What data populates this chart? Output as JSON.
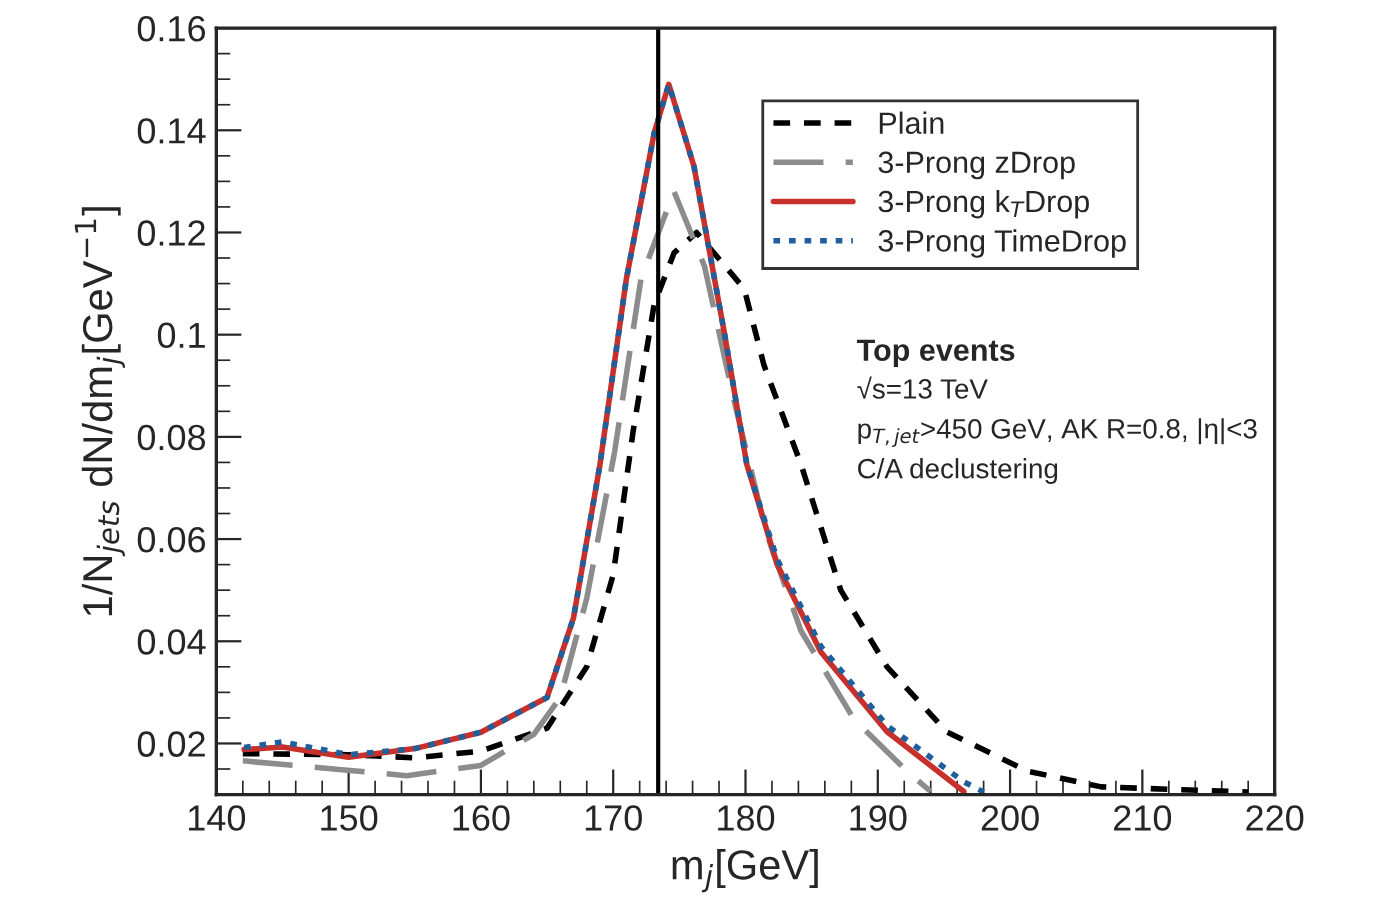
{
  "chart_data": {
    "type": "line",
    "xlabel": "m$_{j}$[GeV]",
    "ylabel": "1/N$_{jets}$ dN/dm$_{j}$[GeV$^{−1}$]",
    "xlim": [
      140,
      220
    ],
    "xticks": [
      140,
      150,
      160,
      170,
      180,
      190,
      200,
      210,
      220
    ],
    "ylim": [
      0.01,
      0.16
    ],
    "yticks": [
      0.02,
      0.04,
      0.06,
      0.08,
      0.1,
      0.12,
      0.14,
      0.16
    ],
    "grid": false,
    "legend": "top right",
    "marker": "none",
    "ref_lines": [
      {
        "axis": "x",
        "value": 173.4,
        "label": null,
        "color": "#000000",
        "line_style": "solid"
      }
    ],
    "annotations": [
      "Top events",
      "√s=13 TeV",
      "p$_{T,jet}$>450 GeV, AK R=0.8, |η|<3",
      "C/A declustering"
    ],
    "series": [
      {
        "name": "Plain",
        "color": "#000000",
        "line_style": "dashed",
        "x": [
          142,
          150,
          155,
          160,
          165,
          168,
          170,
          171.5,
          173.1,
          174.6,
          176.3,
          179.9,
          181.4,
          184.2,
          187.2,
          190.7,
          195.2,
          201.3,
          206.9,
          218
        ],
        "values": [
          0.018,
          0.0178,
          0.0172,
          0.0185,
          0.023,
          0.035,
          0.053,
          0.081,
          0.106,
          0.116,
          0.12,
          0.109,
          0.094,
          0.0746,
          0.05,
          0.035,
          0.0223,
          0.0146,
          0.0115,
          0.0105
        ]
      },
      {
        "name": "3-Prong zDrop",
        "color": "#8c8c8c",
        "line_style": "longdash",
        "x": [
          142,
          150.1,
          154.4,
          160,
          164,
          166,
          168,
          170.1,
          172.1,
          174.6,
          176.9,
          179.1,
          181.6,
          184.2,
          188.2,
          192.2,
          194
        ],
        "values": [
          0.0166,
          0.0147,
          0.0137,
          0.0157,
          0.0218,
          0.029,
          0.0484,
          0.077,
          0.111,
          0.128,
          0.1134,
          0.0875,
          0.061,
          0.042,
          0.0247,
          0.0146,
          0.0106
        ]
      },
      {
        "name": "3-Prong k$_{T}$Drop",
        "color": "#c8302c",
        "line_style": "solid",
        "x": [
          142.1,
          145,
          150,
          155,
          160,
          165,
          167,
          169,
          171,
          173.1,
          174.2,
          176.1,
          178.4,
          180.1,
          182.4,
          185.7,
          190.7,
          196.5
        ],
        "values": [
          0.0188,
          0.0193,
          0.0173,
          0.019,
          0.0222,
          0.029,
          0.0446,
          0.0746,
          0.111,
          0.1395,
          0.149,
          0.133,
          0.1004,
          0.0746,
          0.055,
          0.0379,
          0.0223,
          0.0106
        ]
      },
      {
        "name": "3-Prong TimeDrop",
        "color": "#1f5f9c",
        "line_style": "dotted",
        "x": [
          142.1,
          145,
          150,
          155,
          160,
          165,
          167,
          169,
          171,
          173.1,
          174.2,
          176.1,
          178.4,
          180.1,
          182.4,
          185.7,
          190.7,
          196.5,
          198
        ],
        "values": [
          0.0192,
          0.0203,
          0.0178,
          0.019,
          0.0222,
          0.029,
          0.0446,
          0.0746,
          0.111,
          0.1395,
          0.149,
          0.133,
          0.1004,
          0.0746,
          0.056,
          0.039,
          0.0235,
          0.0125,
          0.0105
        ]
      }
    ]
  }
}
